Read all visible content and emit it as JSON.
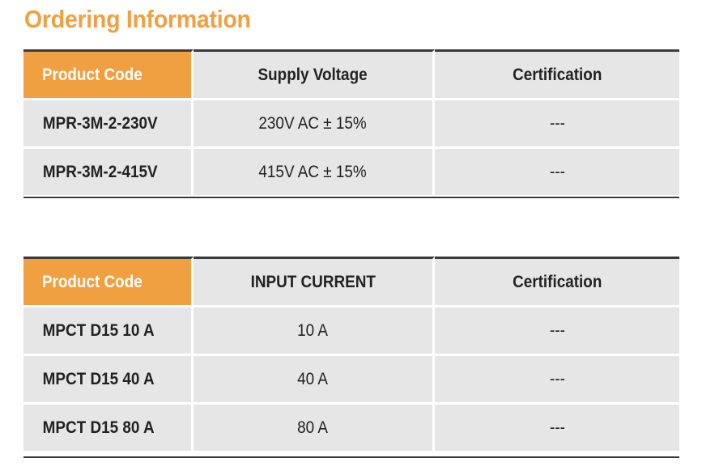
{
  "title": "Ordering Information",
  "table1": {
    "headers": [
      "Product Code",
      "Supply Voltage",
      "Certification"
    ],
    "rows": [
      {
        "code": "MPR-3M-2-230V",
        "value": "230V AC ± 15%",
        "cert": "---"
      },
      {
        "code": "MPR-3M-2-415V",
        "value": "415V AC ± 15%",
        "cert": "---"
      }
    ]
  },
  "table2": {
    "headers": [
      "Product Code",
      "INPUT CURRENT",
      "Certification"
    ],
    "rows": [
      {
        "code": "MPCT D15 10 A",
        "value": "10 A",
        "cert": "---"
      },
      {
        "code": "MPCT D15 40 A",
        "value": "40 A",
        "cert": "---"
      },
      {
        "code": "MPCT D15 80 A",
        "value": "80 A",
        "cert": "---"
      }
    ]
  },
  "colors": {
    "accent": "#f0a040",
    "cell_bg": "#e6e6e7",
    "rule": "#3a3a3a"
  }
}
